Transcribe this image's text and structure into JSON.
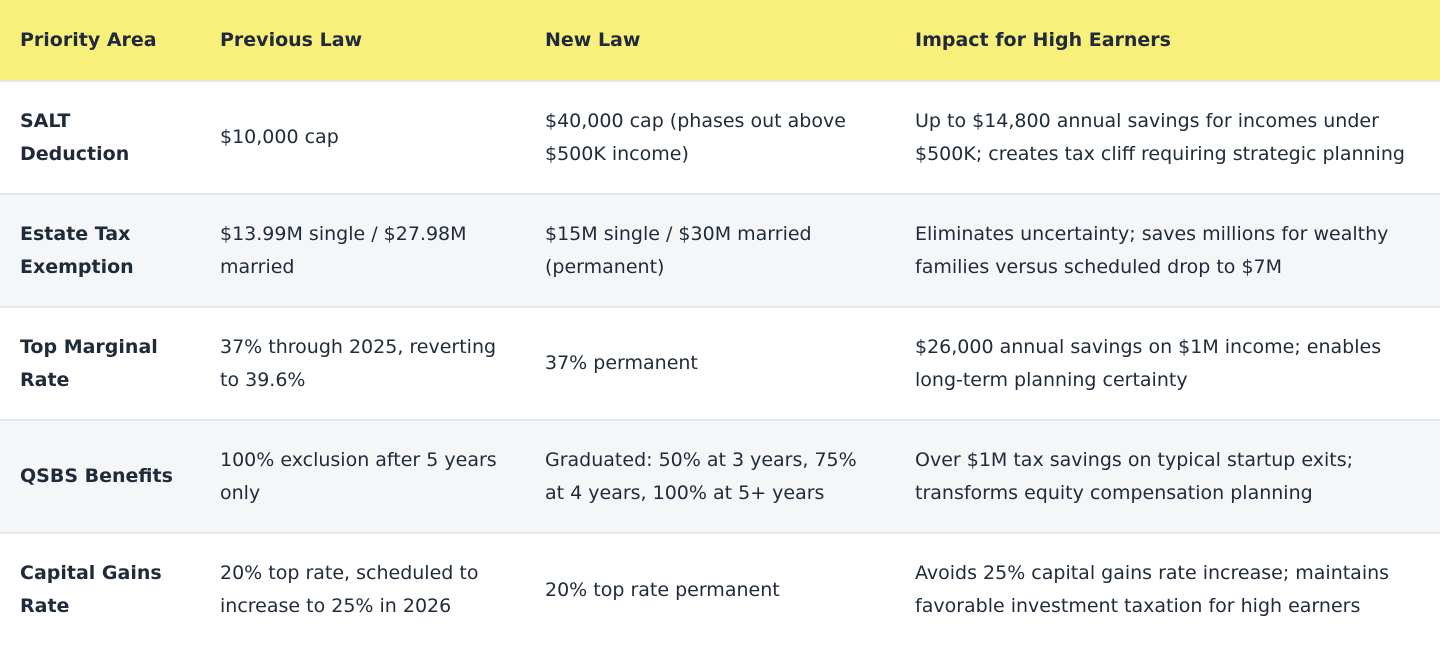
{
  "table": {
    "header": [
      "Priority Area",
      "Previous Law",
      "New Law",
      "Impact for High Earners"
    ],
    "rows": [
      [
        "SALT Deduction",
        "$10,000 cap",
        "$40,000 cap (phases out above $500K income)",
        "Up to $14,800 annual savings for incomes under $500K; creates tax cliff requiring strategic planning"
      ],
      [
        "Estate Tax Exemption",
        "$13.99M single / $27.98M married",
        "$15M single / $30M married (permanent)",
        "Eliminates uncertainty; saves millions for wealthy families versus scheduled drop to $7M"
      ],
      [
        "Top Marginal Rate",
        "37% through 2025, reverting to 39.6%",
        "37% permanent",
        "$26,000 annual savings on $1M income; enables long-term planning certainty"
      ],
      [
        "QSBS Benefits",
        "100% exclusion after 5 years only",
        "Graduated: 50% at 3 years, 75% at 4 years, 100% at 5+ years",
        "Over $1M tax savings on typical startup exits; transforms equity compensation planning"
      ],
      [
        "Capital Gains Rate",
        "20% top rate, scheduled to increase to 25% in 2026",
        "20% top rate permanent",
        "Avoids 25% capital gains rate increase; maintains favorable investment taxation for high earners"
      ]
    ]
  }
}
